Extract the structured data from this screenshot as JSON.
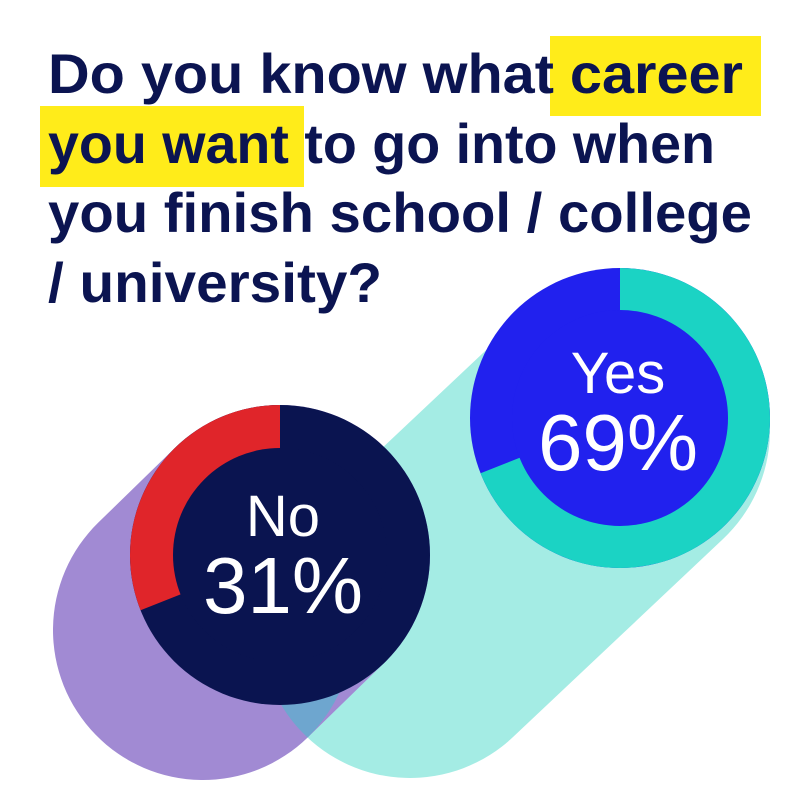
{
  "title": {
    "lines": [
      {
        "segments": [
          {
            "text": "Do you know what ",
            "highlight": false
          },
          {
            "text": "career",
            "highlight": true
          }
        ]
      },
      {
        "segments": [
          {
            "text": "you want",
            "highlight": true
          },
          {
            "text": " to go into when",
            "highlight": false
          }
        ]
      },
      {
        "segments": [
          {
            "text": "you finish school / college",
            "highlight": false
          }
        ]
      },
      {
        "segments": [
          {
            "text": "/ university?",
            "highlight": false
          }
        ]
      }
    ],
    "highlight_color": "#ffec1a",
    "text_color": "#0b1451"
  },
  "chart_data": {
    "type": "pie",
    "style": "two separate donut gauges",
    "title": "Do you know what career you want to go into when you finish school / college / university?",
    "series": [
      {
        "name": "No",
        "value": 31,
        "label": "No",
        "value_label": "31%",
        "arc_color": "#e0252a",
        "body_color": "#0a1450",
        "shadow_color": "#a18ad3"
      },
      {
        "name": "Yes",
        "value": 69,
        "label": "Yes",
        "value_label": "69%",
        "arc_color": "#1bd3c4",
        "body_color": "#2121ee",
        "shadow_color": "#a4ece4"
      }
    ],
    "overlap_color": "#6ea6cf"
  }
}
